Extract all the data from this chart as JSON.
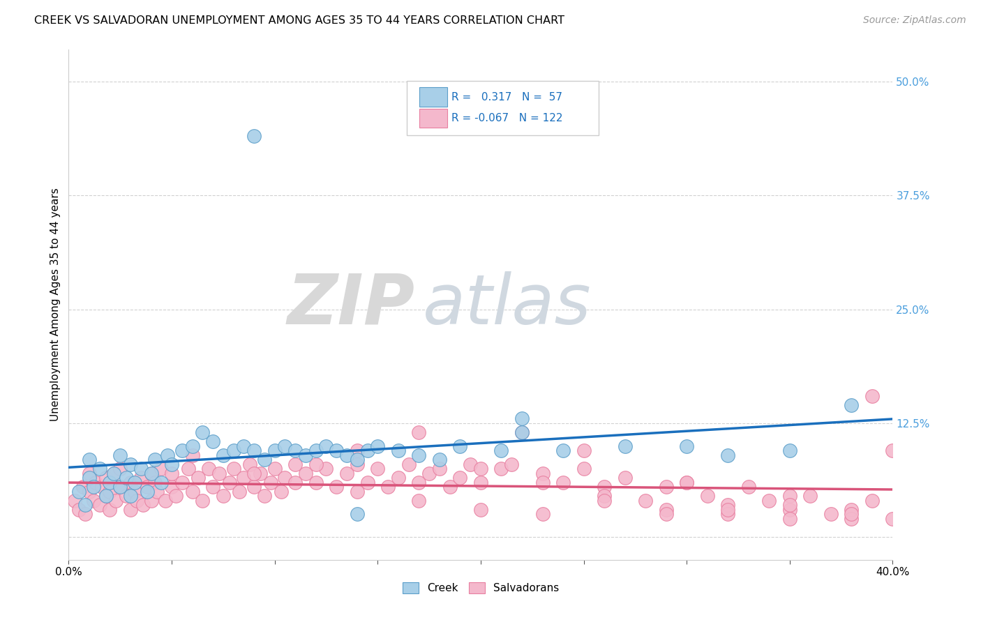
{
  "title": "CREEK VS SALVADORAN UNEMPLOYMENT AMONG AGES 35 TO 44 YEARS CORRELATION CHART",
  "source": "Source: ZipAtlas.com",
  "ylabel": "Unemployment Among Ages 35 to 44 years",
  "x_min": 0.0,
  "x_max": 0.4,
  "y_min": -0.025,
  "y_max": 0.535,
  "x_ticks": [
    0.0,
    0.05,
    0.1,
    0.15,
    0.2,
    0.25,
    0.3,
    0.35,
    0.4
  ],
  "y_ticks": [
    0.0,
    0.125,
    0.25,
    0.375,
    0.5
  ],
  "y_tick_labels": [
    "",
    "12.5%",
    "25.0%",
    "37.5%",
    "50.0%"
  ],
  "creek_color": "#a8cfe8",
  "salvadoran_color": "#f4b8cc",
  "creek_edge_color": "#5b9ec9",
  "salvadoran_edge_color": "#e87fa0",
  "creek_line_color": "#1a6fbd",
  "salvadoran_line_color": "#d9547a",
  "creek_R": 0.317,
  "creek_N": 57,
  "salvadoran_R": -0.067,
  "salvadoran_N": 122,
  "background_color": "#ffffff",
  "grid_color": "#cccccc",
  "watermark_zip": "ZIP",
  "watermark_atlas": "atlas",
  "tick_color": "#4a9edd",
  "legend_border_color": "#cccccc",
  "creek_scatter_x": [
    0.005,
    0.008,
    0.01,
    0.01,
    0.012,
    0.015,
    0.018,
    0.02,
    0.022,
    0.025,
    0.025,
    0.028,
    0.03,
    0.03,
    0.032,
    0.035,
    0.038,
    0.04,
    0.042,
    0.045,
    0.048,
    0.05,
    0.055,
    0.06,
    0.065,
    0.07,
    0.075,
    0.08,
    0.085,
    0.09,
    0.095,
    0.1,
    0.105,
    0.11,
    0.115,
    0.12,
    0.125,
    0.13,
    0.135,
    0.14,
    0.145,
    0.15,
    0.16,
    0.17,
    0.18,
    0.19,
    0.21,
    0.22,
    0.24,
    0.27,
    0.3,
    0.32,
    0.35,
    0.38,
    0.09,
    0.14,
    0.22
  ],
  "creek_scatter_y": [
    0.05,
    0.035,
    0.065,
    0.085,
    0.055,
    0.075,
    0.045,
    0.06,
    0.07,
    0.055,
    0.09,
    0.065,
    0.045,
    0.08,
    0.06,
    0.075,
    0.05,
    0.07,
    0.085,
    0.06,
    0.09,
    0.08,
    0.095,
    0.1,
    0.115,
    0.105,
    0.09,
    0.095,
    0.1,
    0.095,
    0.085,
    0.095,
    0.1,
    0.095,
    0.09,
    0.095,
    0.1,
    0.095,
    0.09,
    0.085,
    0.095,
    0.1,
    0.095,
    0.09,
    0.085,
    0.1,
    0.095,
    0.115,
    0.095,
    0.1,
    0.1,
    0.09,
    0.095,
    0.145,
    0.44,
    0.025,
    0.13
  ],
  "salvadoran_scatter_x": [
    0.003,
    0.005,
    0.007,
    0.008,
    0.01,
    0.01,
    0.012,
    0.013,
    0.015,
    0.016,
    0.018,
    0.018,
    0.02,
    0.02,
    0.022,
    0.023,
    0.025,
    0.025,
    0.028,
    0.03,
    0.03,
    0.032,
    0.033,
    0.035,
    0.036,
    0.038,
    0.04,
    0.04,
    0.042,
    0.043,
    0.045,
    0.047,
    0.05,
    0.05,
    0.052,
    0.055,
    0.058,
    0.06,
    0.063,
    0.065,
    0.068,
    0.07,
    0.073,
    0.075,
    0.078,
    0.08,
    0.083,
    0.085,
    0.088,
    0.09,
    0.093,
    0.095,
    0.098,
    0.1,
    0.103,
    0.105,
    0.11,
    0.115,
    0.12,
    0.125,
    0.13,
    0.135,
    0.14,
    0.145,
    0.15,
    0.155,
    0.16,
    0.165,
    0.17,
    0.175,
    0.18,
    0.185,
    0.19,
    0.195,
    0.2,
    0.21,
    0.22,
    0.23,
    0.24,
    0.25,
    0.26,
    0.27,
    0.28,
    0.29,
    0.3,
    0.31,
    0.32,
    0.33,
    0.34,
    0.35,
    0.36,
    0.37,
    0.38,
    0.39,
    0.4,
    0.215,
    0.25,
    0.3,
    0.35,
    0.39,
    0.14,
    0.17,
    0.2,
    0.23,
    0.26,
    0.29,
    0.32,
    0.35,
    0.38,
    0.4,
    0.11,
    0.14,
    0.17,
    0.2,
    0.23,
    0.26,
    0.29,
    0.32,
    0.35,
    0.38,
    0.06,
    0.09,
    0.12
  ],
  "salvadoran_scatter_y": [
    0.04,
    0.03,
    0.055,
    0.025,
    0.05,
    0.07,
    0.04,
    0.06,
    0.035,
    0.055,
    0.045,
    0.065,
    0.03,
    0.05,
    0.07,
    0.04,
    0.055,
    0.075,
    0.045,
    0.03,
    0.06,
    0.05,
    0.04,
    0.065,
    0.035,
    0.055,
    0.07,
    0.04,
    0.06,
    0.05,
    0.075,
    0.04,
    0.055,
    0.07,
    0.045,
    0.06,
    0.075,
    0.05,
    0.065,
    0.04,
    0.075,
    0.055,
    0.07,
    0.045,
    0.06,
    0.075,
    0.05,
    0.065,
    0.08,
    0.055,
    0.07,
    0.045,
    0.06,
    0.075,
    0.05,
    0.065,
    0.08,
    0.07,
    0.06,
    0.075,
    0.055,
    0.07,
    0.08,
    0.06,
    0.075,
    0.055,
    0.065,
    0.08,
    0.06,
    0.07,
    0.075,
    0.055,
    0.065,
    0.08,
    0.06,
    0.075,
    0.115,
    0.07,
    0.06,
    0.075,
    0.055,
    0.065,
    0.04,
    0.055,
    0.06,
    0.045,
    0.035,
    0.055,
    0.04,
    0.03,
    0.045,
    0.025,
    0.03,
    0.04,
    0.02,
    0.08,
    0.095,
    0.06,
    0.045,
    0.155,
    0.095,
    0.115,
    0.075,
    0.06,
    0.045,
    0.03,
    0.025,
    0.035,
    0.02,
    0.095,
    0.06,
    0.05,
    0.04,
    0.03,
    0.025,
    0.04,
    0.025,
    0.03,
    0.02,
    0.025,
    0.09,
    0.07,
    0.08
  ]
}
